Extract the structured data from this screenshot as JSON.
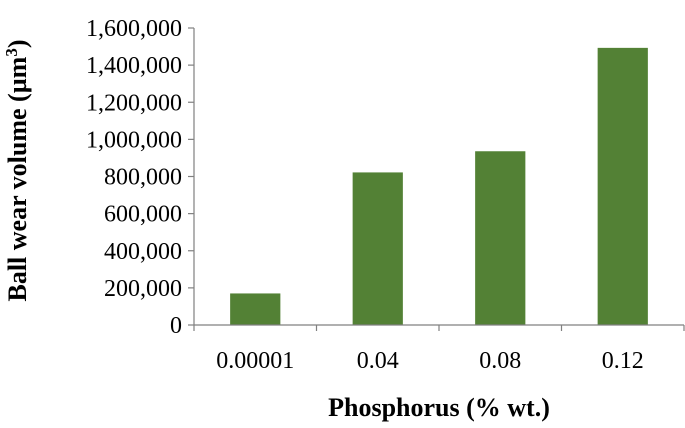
{
  "chart_data": {
    "type": "bar",
    "categories": [
      "0.00001",
      "0.04",
      "0.08",
      "0.12"
    ],
    "values": [
      170000,
      822000,
      936000,
      1493000
    ],
    "xlabel": "Phosphorus (% wt.)",
    "ylabel_main": "Ball wear volume (µm",
    "ylabel_sup": "3",
    "ylabel_close": ")",
    "ylim": [
      0,
      1600000
    ],
    "ytick_values": [
      0,
      200000,
      400000,
      600000,
      800000,
      1000000,
      1200000,
      1400000,
      1600000
    ],
    "ytick_labels": [
      "0",
      "200,000",
      "400,000",
      "600,000",
      "800,000",
      "1,000,000",
      "1,200,000",
      "1,400,000",
      "1,600,000"
    ],
    "bar_color": "#538135",
    "axis_color": "#808080",
    "grid": false,
    "legend": "none"
  }
}
